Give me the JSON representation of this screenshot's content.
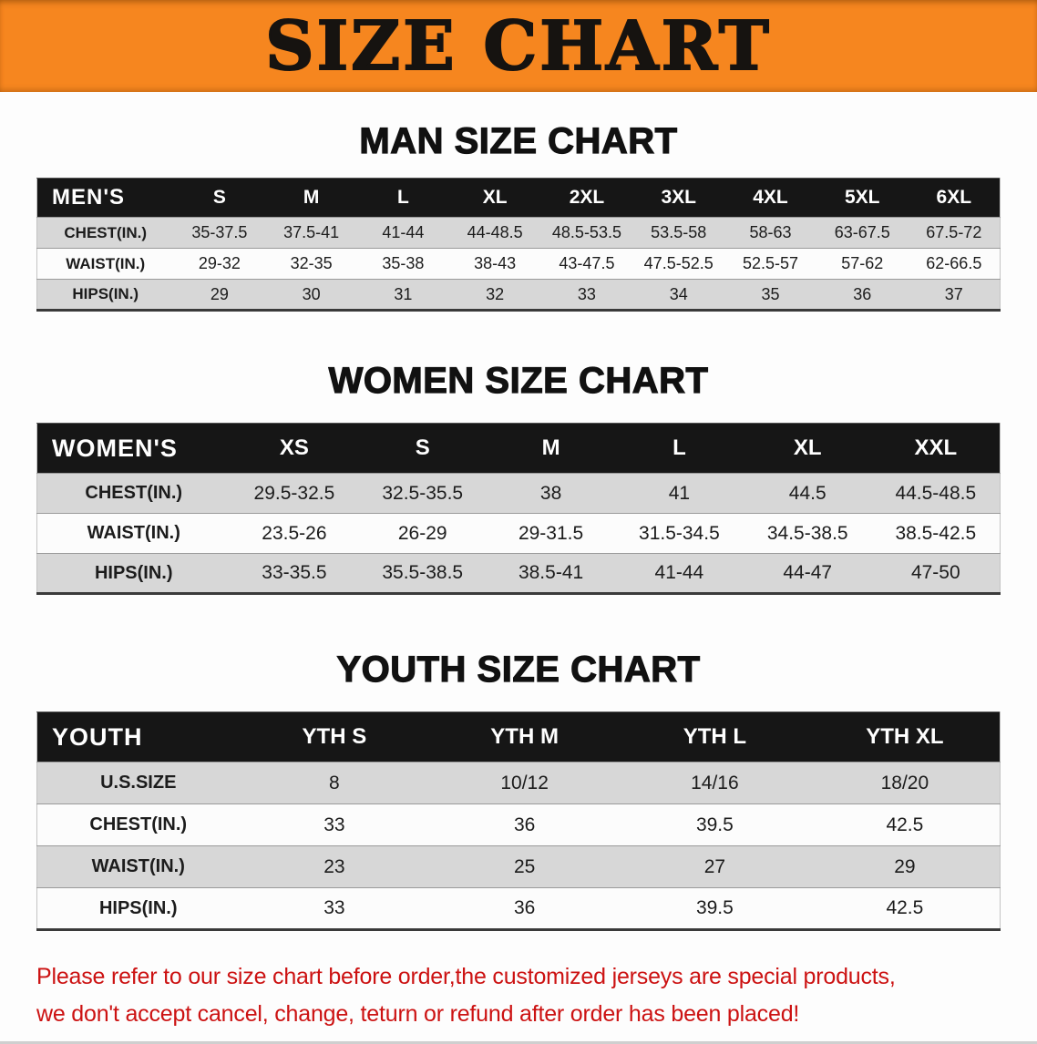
{
  "banner": {
    "title": "SIZE CHART"
  },
  "sections": [
    {
      "heading": "MAN SIZE CHART",
      "table": {
        "header": [
          "MEN'S",
          "S",
          "M",
          "L",
          "XL",
          "2XL",
          "3XL",
          "4XL",
          "5XL",
          "6XL"
        ],
        "rows": [
          [
            "CHEST(IN.)",
            "35-37.5",
            "37.5-41",
            "41-44",
            "44-48.5",
            "48.5-53.5",
            "53.5-58",
            "58-63",
            "63-67.5",
            "67.5-72"
          ],
          [
            "WAIST(IN.)",
            "29-32",
            "32-35",
            "35-38",
            "38-43",
            "43-47.5",
            "47.5-52.5",
            "52.5-57",
            "57-62",
            "62-66.5"
          ],
          [
            "HIPS(IN.)",
            "29",
            "30",
            "31",
            "32",
            "33",
            "34",
            "35",
            "36",
            "37"
          ]
        ]
      }
    },
    {
      "heading": "WOMEN SIZE CHART",
      "table": {
        "header": [
          "WOMEN'S",
          "XS",
          "S",
          "M",
          "L",
          "XL",
          "XXL"
        ],
        "rows": [
          [
            "CHEST(IN.)",
            "29.5-32.5",
            "32.5-35.5",
            "38",
            "41",
            "44.5",
            "44.5-48.5"
          ],
          [
            "WAIST(IN.)",
            "23.5-26",
            "26-29",
            "29-31.5",
            "31.5-34.5",
            "34.5-38.5",
            "38.5-42.5"
          ],
          [
            "HIPS(IN.)",
            "33-35.5",
            "35.5-38.5",
            "38.5-41",
            "41-44",
            "44-47",
            "47-50"
          ]
        ]
      }
    },
    {
      "heading": "YOUTH SIZE CHART",
      "table": {
        "header": [
          "YOUTH",
          "YTH S",
          "YTH M",
          "YTH L",
          "YTH XL"
        ],
        "rows": [
          [
            "U.S.SIZE",
            "8",
            "10/12",
            "14/16",
            "18/20"
          ],
          [
            "CHEST(IN.)",
            "33",
            "36",
            "39.5",
            "42.5"
          ],
          [
            "WAIST(IN.)",
            "23",
            "25",
            "27",
            "29"
          ],
          [
            "HIPS(IN.)",
            "33",
            "36",
            "39.5",
            "42.5"
          ]
        ]
      }
    }
  ],
  "disclaimer": {
    "line1": "Please refer to our size chart before order,the customized jerseys are special products,",
    "line2": "we don't accept cancel, change, teturn or refund after order has been placed!"
  },
  "colors": {
    "banner_bg": "#f6861f",
    "banner_text": "#161310",
    "table_header_bg": "#161616",
    "table_header_text": "#ffffff",
    "row_stripe_bg": "#d7d7d7",
    "disclaimer_text": "#cc1212"
  }
}
